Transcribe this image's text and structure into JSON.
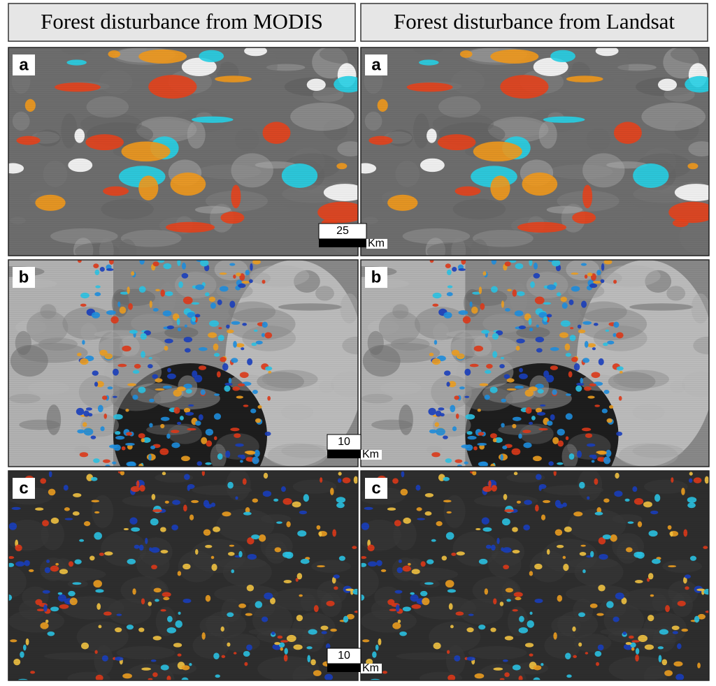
{
  "headers": [
    "Forest disturbance from MODIS",
    "Forest disturbance from Landsat"
  ],
  "panels": [
    {
      "label": "a",
      "scale_bar": {
        "distance": 25,
        "unit": "Km"
      }
    },
    {
      "label": "b",
      "scale_bar": {
        "distance": 10,
        "unit": "Km"
      }
    },
    {
      "label": "c",
      "scale_bar": {
        "distance": 10,
        "unit": "Km"
      }
    }
  ]
}
